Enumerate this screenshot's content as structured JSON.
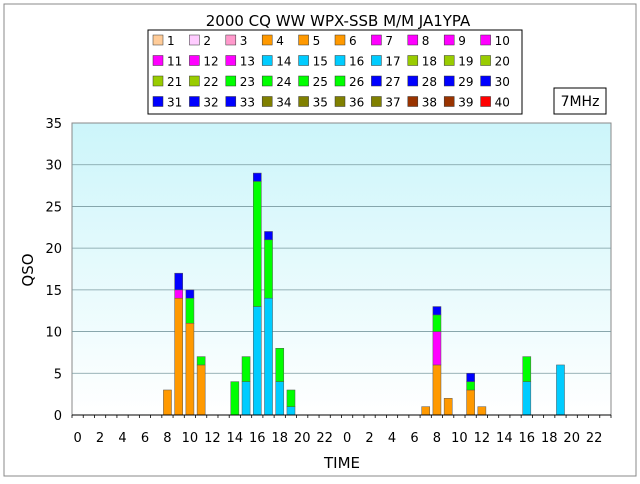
{
  "chart_data": {
    "type": "bar",
    "stacked": true,
    "title": "2000 CQ WW WPX-SSB M/M JA1YPA",
    "band_label": "7MHz",
    "xlabel": "TIME",
    "ylabel": "QSO",
    "ylim": [
      0,
      35
    ],
    "y_ticks": [
      "0",
      "5",
      "10",
      "15",
      "20",
      "25",
      "30",
      "35"
    ],
    "x_tick_labels": [
      "0",
      "2",
      "4",
      "6",
      "8",
      "10",
      "12",
      "14",
      "16",
      "18",
      "20",
      "22",
      "0",
      "2",
      "4",
      "6",
      "8",
      "10",
      "12",
      "14",
      "16",
      "18",
      "20",
      "22"
    ],
    "hours": 48,
    "grid": true,
    "legend_placement": "top",
    "legend": [
      {
        "label": "1",
        "color": "#FFCC99"
      },
      {
        "label": "2",
        "color": "#FFCCFF"
      },
      {
        "label": "3",
        "color": "#FF99CC"
      },
      {
        "label": "4",
        "color": "#FF9900"
      },
      {
        "label": "5",
        "color": "#FF9900"
      },
      {
        "label": "6",
        "color": "#FF9900"
      },
      {
        "label": "7",
        "color": "#FF00FF"
      },
      {
        "label": "8",
        "color": "#FF00FF"
      },
      {
        "label": "9",
        "color": "#FF00FF"
      },
      {
        "label": "10",
        "color": "#FF00FF"
      },
      {
        "label": "11",
        "color": "#FF00FF"
      },
      {
        "label": "12",
        "color": "#FF00FF"
      },
      {
        "label": "13",
        "color": "#FF00FF"
      },
      {
        "label": "14",
        "color": "#00CCFF"
      },
      {
        "label": "15",
        "color": "#00CCFF"
      },
      {
        "label": "16",
        "color": "#00CCFF"
      },
      {
        "label": "17",
        "color": "#00CCFF"
      },
      {
        "label": "18",
        "color": "#99CC00"
      },
      {
        "label": "19",
        "color": "#99CC00"
      },
      {
        "label": "20",
        "color": "#99CC00"
      },
      {
        "label": "21",
        "color": "#99CC00"
      },
      {
        "label": "22",
        "color": "#99CC00"
      },
      {
        "label": "23",
        "color": "#00FF00"
      },
      {
        "label": "24",
        "color": "#00FF00"
      },
      {
        "label": "25",
        "color": "#00FF00"
      },
      {
        "label": "26",
        "color": "#00FF00"
      },
      {
        "label": "27",
        "color": "#0000FF"
      },
      {
        "label": "28",
        "color": "#0000FF"
      },
      {
        "label": "29",
        "color": "#0000FF"
      },
      {
        "label": "30",
        "color": "#0000FF"
      },
      {
        "label": "31",
        "color": "#0000FF"
      },
      {
        "label": "32",
        "color": "#0000FF"
      },
      {
        "label": "33",
        "color": "#0000FF"
      },
      {
        "label": "34",
        "color": "#808000"
      },
      {
        "label": "35",
        "color": "#808000"
      },
      {
        "label": "36",
        "color": "#808000"
      },
      {
        "label": "37",
        "color": "#808000"
      },
      {
        "label": "38",
        "color": "#993300"
      },
      {
        "label": "39",
        "color": "#993300"
      },
      {
        "label": "40",
        "color": "#FF0000"
      }
    ],
    "bars": [
      {
        "hour": 8,
        "segments": [
          {
            "color": "#FF9900",
            "value": 3
          }
        ]
      },
      {
        "hour": 9,
        "segments": [
          {
            "color": "#FF9900",
            "value": 14
          },
          {
            "color": "#FF00FF",
            "value": 1
          },
          {
            "color": "#0000FF",
            "value": 2
          }
        ]
      },
      {
        "hour": 10,
        "segments": [
          {
            "color": "#FF9900",
            "value": 11
          },
          {
            "color": "#00FF00",
            "value": 3
          },
          {
            "color": "#0000FF",
            "value": 1
          }
        ]
      },
      {
        "hour": 11,
        "segments": [
          {
            "color": "#FF9900",
            "value": 6
          },
          {
            "color": "#00FF00",
            "value": 1
          }
        ]
      },
      {
        "hour": 14,
        "segments": [
          {
            "color": "#00FF00",
            "value": 4
          }
        ]
      },
      {
        "hour": 15,
        "segments": [
          {
            "color": "#00CCFF",
            "value": 4
          },
          {
            "color": "#00FF00",
            "value": 3
          }
        ]
      },
      {
        "hour": 16,
        "segments": [
          {
            "color": "#00CCFF",
            "value": 13
          },
          {
            "color": "#00FF00",
            "value": 15
          },
          {
            "color": "#0000FF",
            "value": 1
          }
        ]
      },
      {
        "hour": 17,
        "segments": [
          {
            "color": "#00CCFF",
            "value": 14
          },
          {
            "color": "#00FF00",
            "value": 7
          },
          {
            "color": "#0000FF",
            "value": 1
          }
        ]
      },
      {
        "hour": 18,
        "segments": [
          {
            "color": "#00CCFF",
            "value": 4
          },
          {
            "color": "#00FF00",
            "value": 4
          }
        ]
      },
      {
        "hour": 19,
        "segments": [
          {
            "color": "#00CCFF",
            "value": 1
          },
          {
            "color": "#00FF00",
            "value": 2
          }
        ]
      },
      {
        "hour": 31,
        "segments": [
          {
            "color": "#FF9900",
            "value": 1
          }
        ]
      },
      {
        "hour": 32,
        "segments": [
          {
            "color": "#FF9900",
            "value": 6
          },
          {
            "color": "#FF00FF",
            "value": 4
          },
          {
            "color": "#00FF00",
            "value": 2
          },
          {
            "color": "#0000FF",
            "value": 1
          }
        ]
      },
      {
        "hour": 33,
        "segments": [
          {
            "color": "#FF9900",
            "value": 2
          }
        ]
      },
      {
        "hour": 35,
        "segments": [
          {
            "color": "#FF9900",
            "value": 3
          },
          {
            "color": "#00FF00",
            "value": 1
          },
          {
            "color": "#0000FF",
            "value": 1
          }
        ]
      },
      {
        "hour": 36,
        "segments": [
          {
            "color": "#FF9900",
            "value": 1
          }
        ]
      },
      {
        "hour": 40,
        "segments": [
          {
            "color": "#00CCFF",
            "value": 4
          },
          {
            "color": "#00FF00",
            "value": 3
          }
        ]
      },
      {
        "hour": 43,
        "segments": [
          {
            "color": "#00CCFF",
            "value": 6
          }
        ]
      }
    ]
  }
}
